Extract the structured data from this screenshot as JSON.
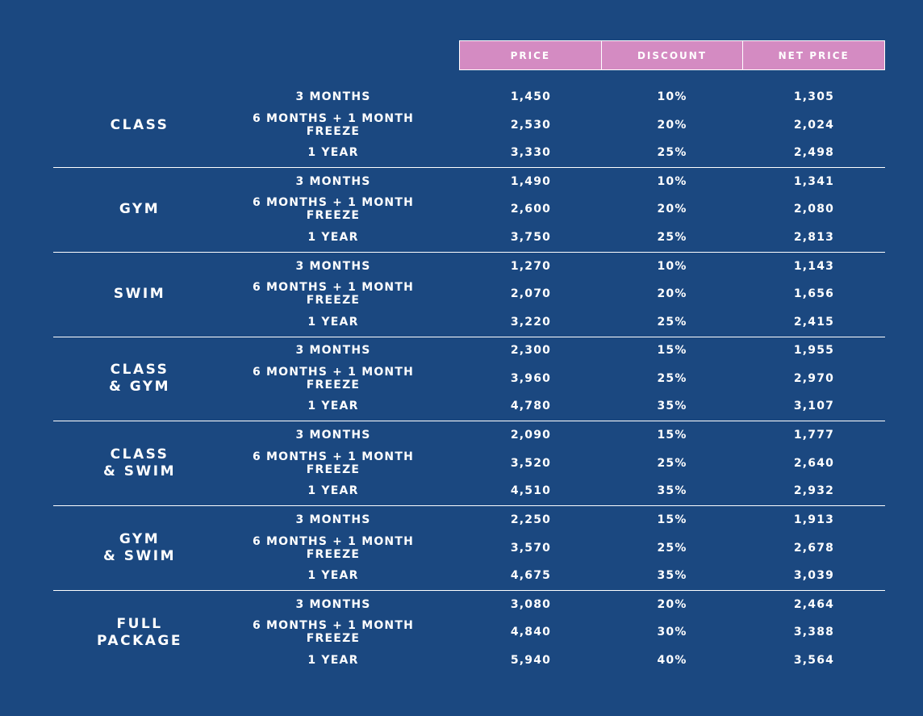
{
  "headers": [
    "PRICE",
    "DISCOUNT",
    "NET PRICE"
  ],
  "colors": {
    "background": "#1b4880",
    "header": "#d48bc2"
  },
  "sections": [
    {
      "name": "CLASS",
      "rows": [
        [
          "3 MONTHS",
          "1,450",
          "10%",
          "1,305"
        ],
        [
          "6 MONTHS + 1 MONTH FREEZE",
          "2,530",
          "20%",
          "2,024"
        ],
        [
          "1 YEAR",
          "3,330",
          "25%",
          "2,498"
        ]
      ]
    },
    {
      "name": "GYM",
      "rows": [
        [
          "3 MONTHS",
          "1,490",
          "10%",
          "1,341"
        ],
        [
          "6 MONTHS + 1 MONTH FREEZE",
          "2,600",
          "20%",
          "2,080"
        ],
        [
          "1 YEAR",
          "3,750",
          "25%",
          "2,813"
        ]
      ]
    },
    {
      "name": "SWIM",
      "rows": [
        [
          "3 MONTHS",
          "1,270",
          "10%",
          "1,143"
        ],
        [
          "6 MONTHS + 1 MONTH FREEZE",
          "2,070",
          "20%",
          "1,656"
        ],
        [
          "1 YEAR",
          "3,220",
          "25%",
          "2,415"
        ]
      ]
    },
    {
      "name": "CLASS\n& GYM",
      "rows": [
        [
          "3 MONTHS",
          "2,300",
          "15%",
          "1,955"
        ],
        [
          "6 MONTHS + 1 MONTH FREEZE",
          "3,960",
          "25%",
          "2,970"
        ],
        [
          "1 YEAR",
          "4,780",
          "35%",
          "3,107"
        ]
      ]
    },
    {
      "name": "CLASS\n& SWIM",
      "rows": [
        [
          "3 MONTHS",
          "2,090",
          "15%",
          "1,777"
        ],
        [
          "6 MONTHS + 1 MONTH FREEZE",
          "3,520",
          "25%",
          "2,640"
        ],
        [
          "1 YEAR",
          "4,510",
          "35%",
          "2,932"
        ]
      ]
    },
    {
      "name": "GYM\n& SWIM",
      "rows": [
        [
          "3 MONTHS",
          "2,250",
          "15%",
          "1,913"
        ],
        [
          "6 MONTHS + 1 MONTH FREEZE",
          "3,570",
          "25%",
          "2,678"
        ],
        [
          "1 YEAR",
          "4,675",
          "35%",
          "3,039"
        ]
      ]
    },
    {
      "name": "FULL\nPACKAGE",
      "rows": [
        [
          "3 MONTHS",
          "3,080",
          "20%",
          "2,464"
        ],
        [
          "6 MONTHS + 1 MONTH FREEZE",
          "4,840",
          "30%",
          "3,388"
        ],
        [
          "1 YEAR",
          "5,940",
          "40%",
          "3,564"
        ]
      ]
    }
  ]
}
